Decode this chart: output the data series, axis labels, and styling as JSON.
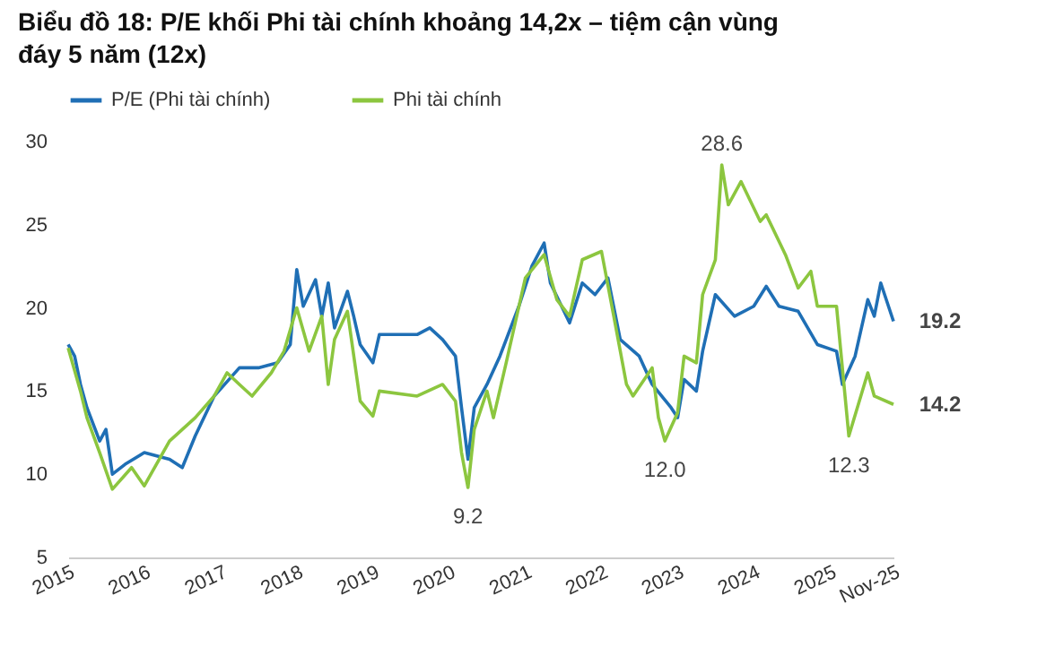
{
  "chart_data": {
    "type": "line",
    "title": "Biểu đồ 18: P/E khối Phi tài chính khoảng 14,2x – tiệm cận vùng đáy 5 năm (12x)",
    "xlim": [
      "2015-01",
      "2025-11"
    ],
    "xticks": [
      "2015",
      "2016",
      "2017",
      "2018",
      "2019",
      "2020",
      "2021",
      "2022",
      "2023",
      "2024",
      "2025",
      {
        "value": "2025-11",
        "label": "Nov-25"
      }
    ],
    "ylim": [
      5,
      30
    ],
    "yticks": [
      5,
      10,
      15,
      20,
      25,
      30
    ],
    "grid": false,
    "legend": "top",
    "line_style": "solid",
    "marker": "none",
    "series": [
      {
        "name": "P/E (Phi tài chính)",
        "color": "#1f6fb5",
        "x": [
          "2015-01",
          "2015-02",
          "2015-03",
          "2015-04",
          "2015-06",
          "2015-07",
          "2015-08",
          "2015-10",
          "2016-01",
          "2016-05",
          "2016-07",
          "2016-09",
          "2016-12",
          "2017-04",
          "2017-07",
          "2017-10",
          "2017-12",
          "2018-01",
          "2018-02",
          "2018-04",
          "2018-05",
          "2018-06",
          "2018-07",
          "2018-09",
          "2018-10",
          "2018-11",
          "2019-01",
          "2019-02",
          "2019-08",
          "2019-10",
          "2019-12",
          "2020-02",
          "2020-03",
          "2020-04",
          "2020-05",
          "2020-07",
          "2020-09",
          "2020-12",
          "2021-02",
          "2021-04",
          "2021-05",
          "2021-08",
          "2021-10",
          "2021-12",
          "2022-02",
          "2022-04",
          "2022-07",
          "2022-09",
          "2022-12",
          "2023-01",
          "2023-02",
          "2023-04",
          "2023-05",
          "2023-07",
          "2023-10",
          "2024-01",
          "2024-03",
          "2024-05",
          "2024-08",
          "2024-11",
          "2025-02",
          "2025-03",
          "2025-05",
          "2025-07",
          "2025-08",
          "2025-09",
          "2025-11"
        ],
        "values": [
          17.8,
          17.1,
          15.4,
          14.0,
          12.0,
          12.7,
          10.0,
          10.6,
          11.3,
          10.9,
          10.4,
          12.3,
          14.7,
          16.4,
          16.4,
          16.7,
          17.8,
          22.3,
          20.1,
          21.7,
          19.5,
          21.5,
          18.8,
          21.0,
          19.5,
          17.8,
          16.7,
          18.4,
          18.4,
          18.8,
          18.1,
          17.1,
          14.0,
          10.9,
          14.0,
          15.4,
          17.1,
          20.1,
          22.5,
          23.9,
          21.5,
          19.1,
          21.5,
          20.8,
          21.8,
          18.1,
          17.1,
          15.4,
          14.0,
          13.4,
          15.7,
          15.0,
          17.4,
          20.8,
          19.5,
          20.1,
          21.3,
          20.1,
          19.8,
          17.8,
          17.4,
          15.4,
          17.1,
          20.5,
          19.5,
          21.5,
          19.2
        ]
      },
      {
        "name": "Phi tài chính",
        "color": "#8cc63f",
        "x": [
          "2015-01",
          "2015-03",
          "2015-04",
          "2015-06",
          "2015-08",
          "2015-11",
          "2016-01",
          "2016-05",
          "2016-09",
          "2016-12",
          "2017-02",
          "2017-04",
          "2017-06",
          "2017-09",
          "2017-11",
          "2018-01",
          "2018-03",
          "2018-05",
          "2018-06",
          "2018-07",
          "2018-09",
          "2018-11",
          "2019-01",
          "2019-02",
          "2019-08",
          "2019-12",
          "2020-02",
          "2020-03",
          "2020-04",
          "2020-05",
          "2020-07",
          "2020-08",
          "2020-10",
          "2021-01",
          "2021-04",
          "2021-06",
          "2021-08",
          "2021-10",
          "2022-01",
          "2022-03",
          "2022-05",
          "2022-06",
          "2022-09",
          "2022-10",
          "2022-11",
          "2023-01",
          "2023-02",
          "2023-04",
          "2023-05",
          "2023-07",
          "2023-08",
          "2023-09",
          "2023-11",
          "2024-02",
          "2024-03",
          "2024-06",
          "2024-08",
          "2024-10",
          "2024-11",
          "2025-02",
          "2025-04",
          "2025-07",
          "2025-08",
          "2025-11"
        ],
        "values": [
          17.6,
          15.0,
          13.4,
          11.3,
          9.1,
          10.4,
          9.3,
          12.0,
          13.4,
          14.7,
          16.1,
          15.4,
          14.7,
          16.1,
          17.4,
          20.0,
          17.4,
          19.5,
          15.4,
          18.1,
          19.8,
          14.4,
          13.5,
          15.0,
          14.7,
          15.4,
          14.4,
          11.3,
          9.2,
          12.7,
          15.0,
          13.4,
          16.7,
          21.8,
          23.2,
          20.5,
          19.5,
          22.9,
          23.4,
          19.5,
          15.4,
          14.7,
          16.4,
          13.4,
          12.0,
          13.7,
          17.1,
          16.7,
          20.8,
          22.9,
          28.6,
          26.2,
          27.6,
          25.2,
          25.6,
          23.2,
          21.2,
          22.2,
          20.1,
          20.1,
          12.3,
          16.1,
          14.7,
          14.2
        ]
      }
    ],
    "annotations": [
      {
        "text": "9.2",
        "x": "2020-04",
        "y": 9.2
      },
      {
        "text": "12.0",
        "x": "2022-11",
        "y": 12.0
      },
      {
        "text": "28.6",
        "x": "2023-08",
        "y": 28.6
      },
      {
        "text": "12.3",
        "x": "2025-04",
        "y": 12.3
      },
      {
        "text": "19.2",
        "x": "2025-11",
        "y": 19.2
      },
      {
        "text": "14.2",
        "x": "2025-11",
        "y": 14.2
      }
    ]
  }
}
